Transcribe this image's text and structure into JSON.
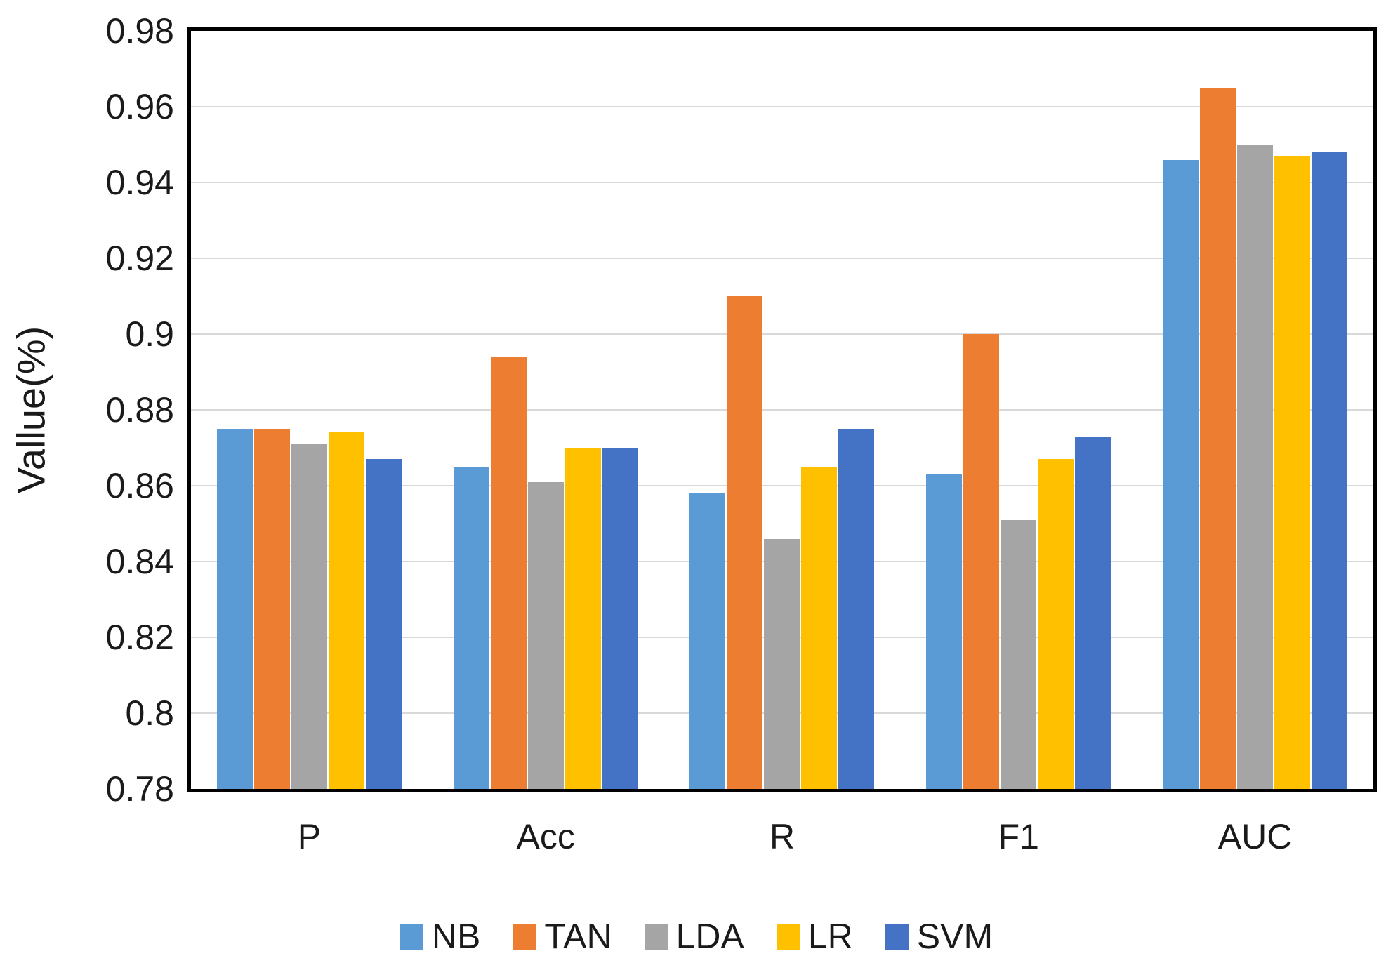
{
  "chart_data": {
    "type": "bar",
    "title": "",
    "xlabel": "",
    "ylabel": "Vallue(%)",
    "categories": [
      "P",
      "Acc",
      "R",
      "F1",
      "AUC"
    ],
    "series": [
      {
        "name": "NB",
        "color": "#5B9BD5",
        "values": [
          0.875,
          0.865,
          0.858,
          0.863,
          0.946
        ]
      },
      {
        "name": "TAN",
        "color": "#ED7D31",
        "values": [
          0.875,
          0.894,
          0.91,
          0.9,
          0.965
        ]
      },
      {
        "name": "LDA",
        "color": "#A5A5A5",
        "values": [
          0.871,
          0.861,
          0.846,
          0.851,
          0.95
        ]
      },
      {
        "name": "LR",
        "color": "#FFC000",
        "values": [
          0.874,
          0.87,
          0.865,
          0.867,
          0.947
        ]
      },
      {
        "name": "SVM",
        "color": "#4472C4",
        "values": [
          0.867,
          0.87,
          0.875,
          0.873,
          0.948
        ]
      }
    ],
    "ylim": [
      0.78,
      0.98
    ],
    "ytick_step": 0.02,
    "ytick_labels": [
      "0.98",
      "0.96",
      "0.94",
      "0.92",
      "0.9",
      "0.88",
      "0.86",
      "0.84",
      "0.82",
      "0.8",
      "0.78"
    ],
    "grid": true,
    "legend_position": "bottom",
    "legend_labels": [
      "NB",
      "TAN",
      "LDA",
      "LR",
      "SVM"
    ]
  },
  "styles": {
    "grid_color": "#d9d9d9",
    "plot_border_color": "#000000",
    "text_color": "#1a1a1a",
    "background_color": "#ffffff"
  }
}
